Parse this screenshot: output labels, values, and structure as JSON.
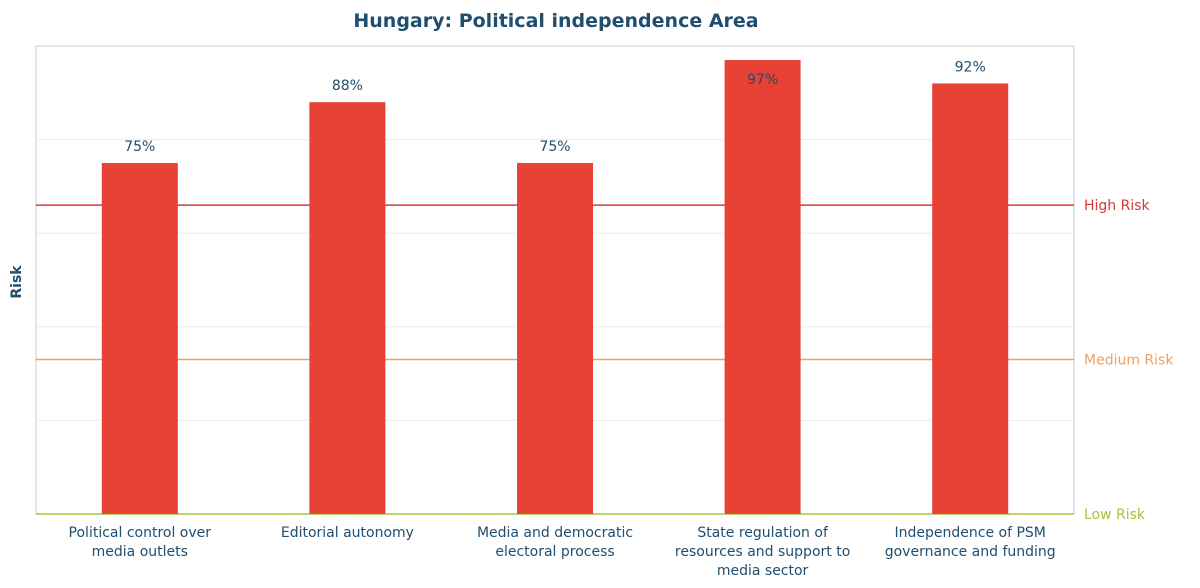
{
  "chart_data": {
    "type": "bar",
    "title": "Hungary: Political independence Area",
    "xlabel": "",
    "ylabel": "Risk",
    "ylim": [
      0,
      100
    ],
    "grid": true,
    "categories": [
      [
        "Political control over",
        "media outlets"
      ],
      [
        "Editorial autonomy"
      ],
      [
        "Media and democratic",
        "electoral process"
      ],
      [
        "State regulation of",
        "resources and support to",
        "media sector"
      ],
      [
        "Independence of PSM",
        "governance and funding"
      ]
    ],
    "values": [
      75,
      88,
      75,
      97,
      92
    ],
    "data_labels": [
      "75%",
      "88%",
      "75%",
      "97%",
      "92%"
    ],
    "bar_color": "#e84135",
    "thresholds": [
      {
        "label": "High Risk",
        "value": 66,
        "color": "#d93a3a"
      },
      {
        "label": "Medium Risk",
        "value": 33,
        "color": "#f0a060"
      },
      {
        "label": "Low Risk",
        "value": 0,
        "color": "#a8c23a"
      }
    ]
  }
}
